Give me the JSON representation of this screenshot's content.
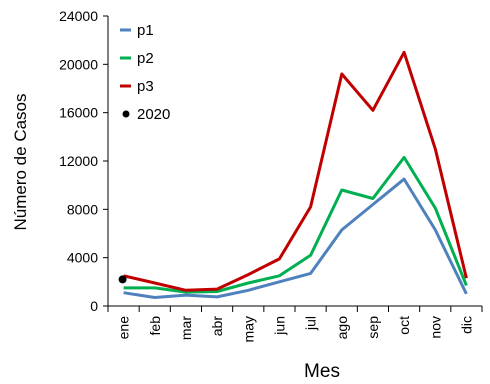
{
  "chart_data": {
    "type": "line",
    "title": "",
    "xlabel": "Mes",
    "ylabel": "Número de Casos",
    "categories": [
      "ene",
      "feb",
      "mar",
      "abr",
      "may",
      "jun",
      "jul",
      "ago",
      "sep",
      "oct",
      "nov",
      "dic"
    ],
    "ylim": [
      0,
      24000
    ],
    "yticks": [
      "0",
      "4000",
      "8000",
      "12000",
      "16000",
      "20000",
      "24000"
    ],
    "grid": false,
    "legend_position": "top-left",
    "series": [
      {
        "name": "p1",
        "color": "#4f81bd",
        "values": [
          1100,
          700,
          900,
          750,
          1300,
          2000,
          2700,
          6300,
          8400,
          10500,
          6300,
          1000
        ]
      },
      {
        "name": "p2",
        "color": "#00b050",
        "values": [
          1500,
          1500,
          1150,
          1200,
          1900,
          2500,
          4200,
          9600,
          8900,
          12300,
          8100,
          1700
        ]
      },
      {
        "name": "p3",
        "color": "#c00000",
        "values": [
          2500,
          1900,
          1300,
          1400,
          2600,
          3900,
          8200,
          19200,
          16200,
          21000,
          13000,
          2300
        ]
      }
    ],
    "points": [
      {
        "name": "2020",
        "color": "#000000",
        "category": "ene",
        "value": 2200
      }
    ]
  }
}
